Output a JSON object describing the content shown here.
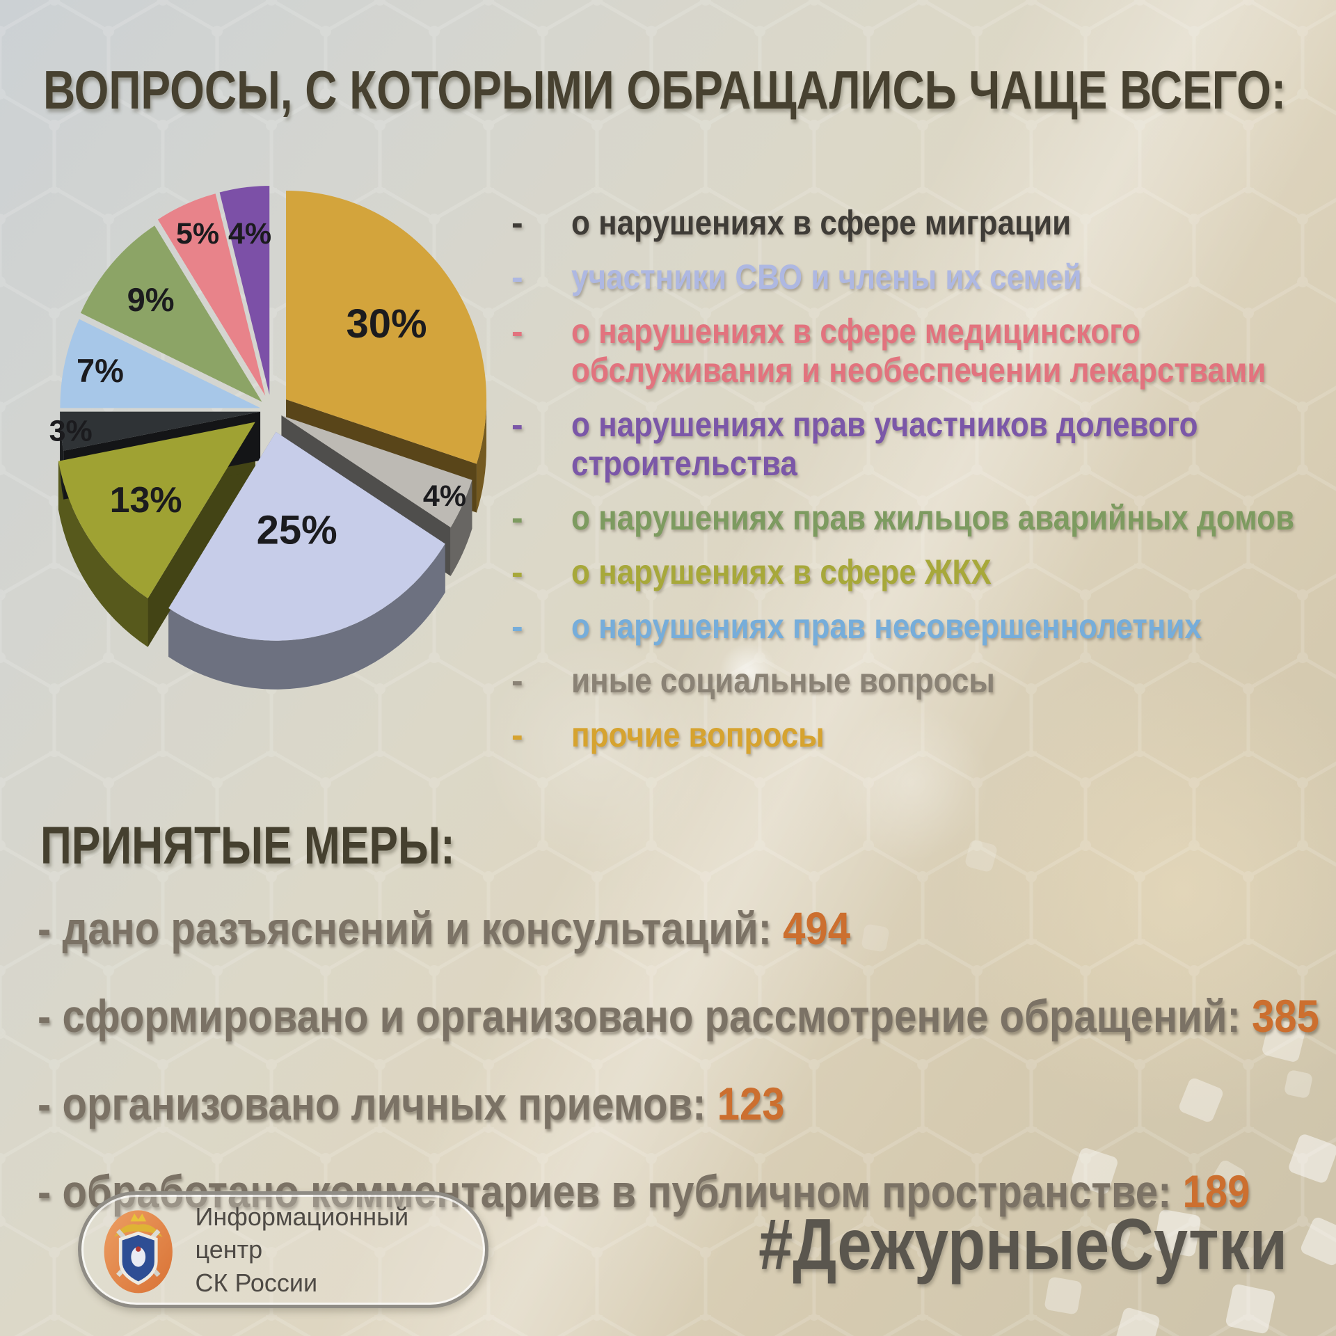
{
  "title": "ВОПРОСЫ, С КОТОРЫМИ ОБРАЩАЛИСЬ ЧАЩЕ ВСЕГО:",
  "chart_data": {
    "type": "pie",
    "style": "3d-exploded",
    "unit": "%",
    "start_angle": "12-oclock-clockwise",
    "slices": [
      {
        "label": "прочие вопросы",
        "value": 30,
        "color": "#D3A43C",
        "explode": 26,
        "label_r": 0.62
      },
      {
        "label": "иные социальные вопросы",
        "value": 4,
        "color": "#BDBAB4",
        "explode": 16,
        "label_r": 0.9
      },
      {
        "label": "участники СВО и члены их семей",
        "value": 25,
        "color": "#C7CDE9",
        "explode": 30,
        "label_r": 0.48
      },
      {
        "label": "о нарушениях в сфере ЖКХ",
        "value": 13,
        "color": "#9FA233",
        "explode": 28,
        "label_r": 0.66
      },
      {
        "label": "о нарушениях в сфере миграции",
        "value": 3,
        "color": "#2F3336",
        "explode": 16,
        "label_r": 0.95
      },
      {
        "label": "о нарушениях прав несовершеннолетних",
        "value": 7,
        "color": "#A7C7E8",
        "explode": 16,
        "label_r": 0.82
      },
      {
        "label": "о нарушениях прав жильцов аварийных домов",
        "value": 9,
        "color": "#8CA466",
        "explode": 18,
        "label_r": 0.74
      },
      {
        "label": "о нарушениях в сфере медицинского обслуживания и необеспечении лекарствами",
        "value": 5,
        "color": "#E8838A",
        "explode": 22,
        "label_r": 0.85
      },
      {
        "label": "о нарушениях прав участников долевого строительства",
        "value": 4,
        "color": "#7C50A7",
        "explode": 22,
        "label_r": 0.78
      }
    ],
    "labels_show": "percent",
    "legend_position": "right"
  },
  "legend": {
    "items": [
      {
        "lines": [
          "о нарушениях в сфере миграции"
        ],
        "color": "#3F3C37"
      },
      {
        "lines": [
          "участники СВО и члены их семей"
        ],
        "color": "#AEB8E2"
      },
      {
        "lines": [
          "о нарушениях в сфере медицинского",
          "обслуживания и необеспечении лекарствами"
        ],
        "color": "#E2737E"
      },
      {
        "lines": [
          "о нарушениях прав участников долевого",
          "строительства"
        ],
        "color": "#7B57A8"
      },
      {
        "lines": [
          "о нарушениях прав жильцов аварийных домов"
        ],
        "color": "#7D9B60"
      },
      {
        "lines": [
          "о нарушениях в сфере ЖКХ"
        ],
        "color": "#A7A83A"
      },
      {
        "lines": [
          "о нарушениях прав несовершеннолетних"
        ],
        "color": "#76ADDA"
      },
      {
        "lines": [
          "иные социальные вопросы"
        ],
        "color": "#8A8275"
      },
      {
        "lines": [
          "прочие вопросы"
        ],
        "color": "#D6A32F"
      }
    ]
  },
  "measures": {
    "heading": "ПРИНЯТЫЕ МЕРЫ:",
    "items": [
      {
        "label": "- дано разъяснений и консультаций:",
        "value": "494"
      },
      {
        "label": "- сформировано и организовано рассмотрение обращений:",
        "value": "385"
      },
      {
        "label": "- организовано личных приемов:",
        "value": "123"
      },
      {
        "label": "- обработано комментариев в публичном пространстве:",
        "value": "189"
      }
    ]
  },
  "footer": {
    "logo": {
      "line1": "Информационный центр",
      "line2": "СК России"
    },
    "hashtag": "#ДежурныеСутки"
  },
  "colors": {
    "background_top_left": "#CDD2D4",
    "background_bottom_right": "#CFC5AC",
    "title": "#474130",
    "measures_text": "#7B7265",
    "measures_number": "#CC6F2F",
    "hashtag": "#5A564E",
    "pie_label": "#1B1B1E"
  }
}
